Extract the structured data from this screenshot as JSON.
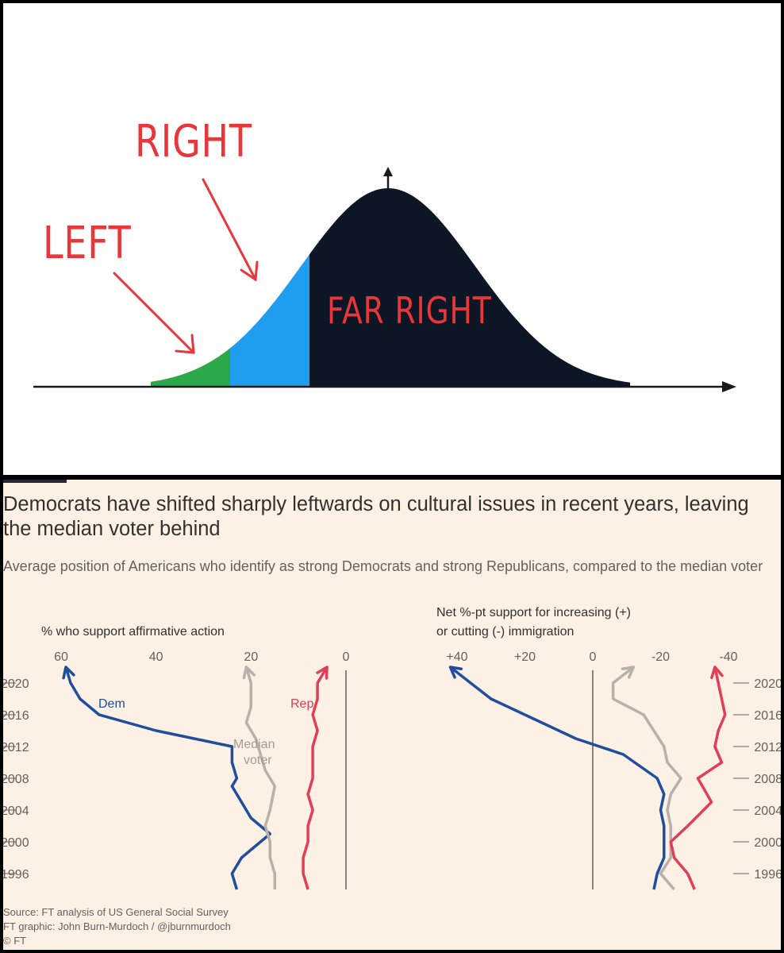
{
  "meme": {
    "labels": {
      "right": "RIGHT",
      "left": "LEFT",
      "far_right": "FAR RIGHT"
    },
    "colors": {
      "left": "#2aa84a",
      "right": "#1f9ef0",
      "far_right": "#0c1624",
      "label": "#e8363a"
    }
  },
  "ft": {
    "title": "Democrats have shifted sharply leftwards on cultural issues in recent years, leaving the median voter behind",
    "subtitle": "Average position of Americans who identify as strong Democrats and strong Republicans, compared to the median voter",
    "source_line1": "Source: FT analysis of US General Social Survey",
    "source_line2": "FT graphic: John Burn-Murdoch / @jburnmurdoch",
    "copyright": "© FT"
  },
  "chart_data": [
    {
      "type": "line",
      "ylabel": "% who support affirmative action",
      "x_ticks": [
        "60",
        "40",
        "20",
        "0"
      ],
      "xlim": [
        0,
        60
      ],
      "x_reversed": true,
      "y_ticks": [
        "2020",
        "2016",
        "2012",
        "2008",
        "2004",
        "2000",
        "1996"
      ],
      "ylim": [
        1994,
        2022
      ],
      "series": [
        {
          "name": "Dem",
          "color": "#1f4e9c",
          "points": [
            [
              23,
              1994
            ],
            [
              24,
              1996
            ],
            [
              22,
              1998
            ],
            [
              16,
              2001
            ],
            [
              20,
              2003
            ],
            [
              22,
              2005
            ],
            [
              24,
              2007
            ],
            [
              23,
              2008
            ],
            [
              24,
              2010
            ],
            [
              24,
              2012
            ],
            [
              40,
              2014
            ],
            [
              52,
              2016
            ],
            [
              56,
              2018
            ],
            [
              58,
              2020
            ],
            [
              59,
              2022
            ]
          ]
        },
        {
          "name": "Median voter",
          "color": "#b8b1ab",
          "points": [
            [
              15,
              1994
            ],
            [
              15,
              1996
            ],
            [
              16,
              1998
            ],
            [
              16,
              2000
            ],
            [
              17,
              2002
            ],
            [
              16,
              2004
            ],
            [
              15,
              2007
            ],
            [
              17,
              2009
            ],
            [
              18,
              2011
            ],
            [
              19,
              2013
            ],
            [
              21,
              2015
            ],
            [
              20,
              2017
            ],
            [
              20,
              2020
            ],
            [
              21,
              2022
            ]
          ]
        },
        {
          "name": "Rep",
          "color": "#e04055",
          "points": [
            [
              8,
              1994
            ],
            [
              9,
              1996
            ],
            [
              9,
              1998
            ],
            [
              8,
              2000
            ],
            [
              8,
              2002
            ],
            [
              7,
              2004
            ],
            [
              8,
              2006
            ],
            [
              7,
              2008
            ],
            [
              7,
              2010
            ],
            [
              7,
              2012
            ],
            [
              6,
              2014
            ],
            [
              7,
              2016
            ],
            [
              6,
              2018
            ],
            [
              6,
              2020
            ],
            [
              4,
              2022
            ]
          ]
        }
      ]
    },
    {
      "type": "line",
      "ylabel_line1": "Net %-pt support for increasing (+)",
      "ylabel_line2": "or cutting (-) immigration",
      "x_ticks": [
        "+40",
        "+20",
        "0",
        "-20",
        "-40"
      ],
      "xlim": [
        -40,
        40
      ],
      "x_reversed": true,
      "y_ticks": [
        "2020",
        "2016",
        "2012",
        "2008",
        "2004",
        "2000",
        "1996"
      ],
      "ylim": [
        1994,
        2022
      ],
      "series": [
        {
          "name": "Dem",
          "color": "#1f4e9c",
          "points": [
            [
              -18,
              1994
            ],
            [
              -19,
              1996
            ],
            [
              -21,
              1998
            ],
            [
              -21,
              2000
            ],
            [
              -21,
              2002
            ],
            [
              -20,
              2004
            ],
            [
              -21,
              2006
            ],
            [
              -19,
              2008
            ],
            [
              -9,
              2011
            ],
            [
              5,
              2013
            ],
            [
              20,
              2016
            ],
            [
              30,
              2018
            ],
            [
              36,
              2020
            ],
            [
              42,
              2022
            ]
          ]
        },
        {
          "name": "Median voter",
          "color": "#b8b1ab",
          "points": [
            [
              -24,
              1994
            ],
            [
              -20,
              1996
            ],
            [
              -23,
              1998
            ],
            [
              -23,
              2000
            ],
            [
              -23,
              2002
            ],
            [
              -22,
              2004
            ],
            [
              -23,
              2006
            ],
            [
              -26,
              2008
            ],
            [
              -22,
              2010
            ],
            [
              -21,
              2012
            ],
            [
              -15,
              2016
            ],
            [
              -6,
              2018
            ],
            [
              -6,
              2020
            ],
            [
              -12,
              2022
            ]
          ]
        },
        {
          "name": "Rep",
          "color": "#e04055",
          "points": [
            [
              -30,
              1994
            ],
            [
              -28,
              1996
            ],
            [
              -24,
              1998
            ],
            [
              -23,
              2000
            ],
            [
              -28,
              2002
            ],
            [
              -35,
              2005
            ],
            [
              -31,
              2008
            ],
            [
              -38,
              2010
            ],
            [
              -36,
              2012
            ],
            [
              -37,
              2014
            ],
            [
              -39,
              2016
            ],
            [
              -38,
              2018
            ],
            [
              -37,
              2020
            ],
            [
              -36,
              2022
            ]
          ]
        }
      ]
    }
  ]
}
